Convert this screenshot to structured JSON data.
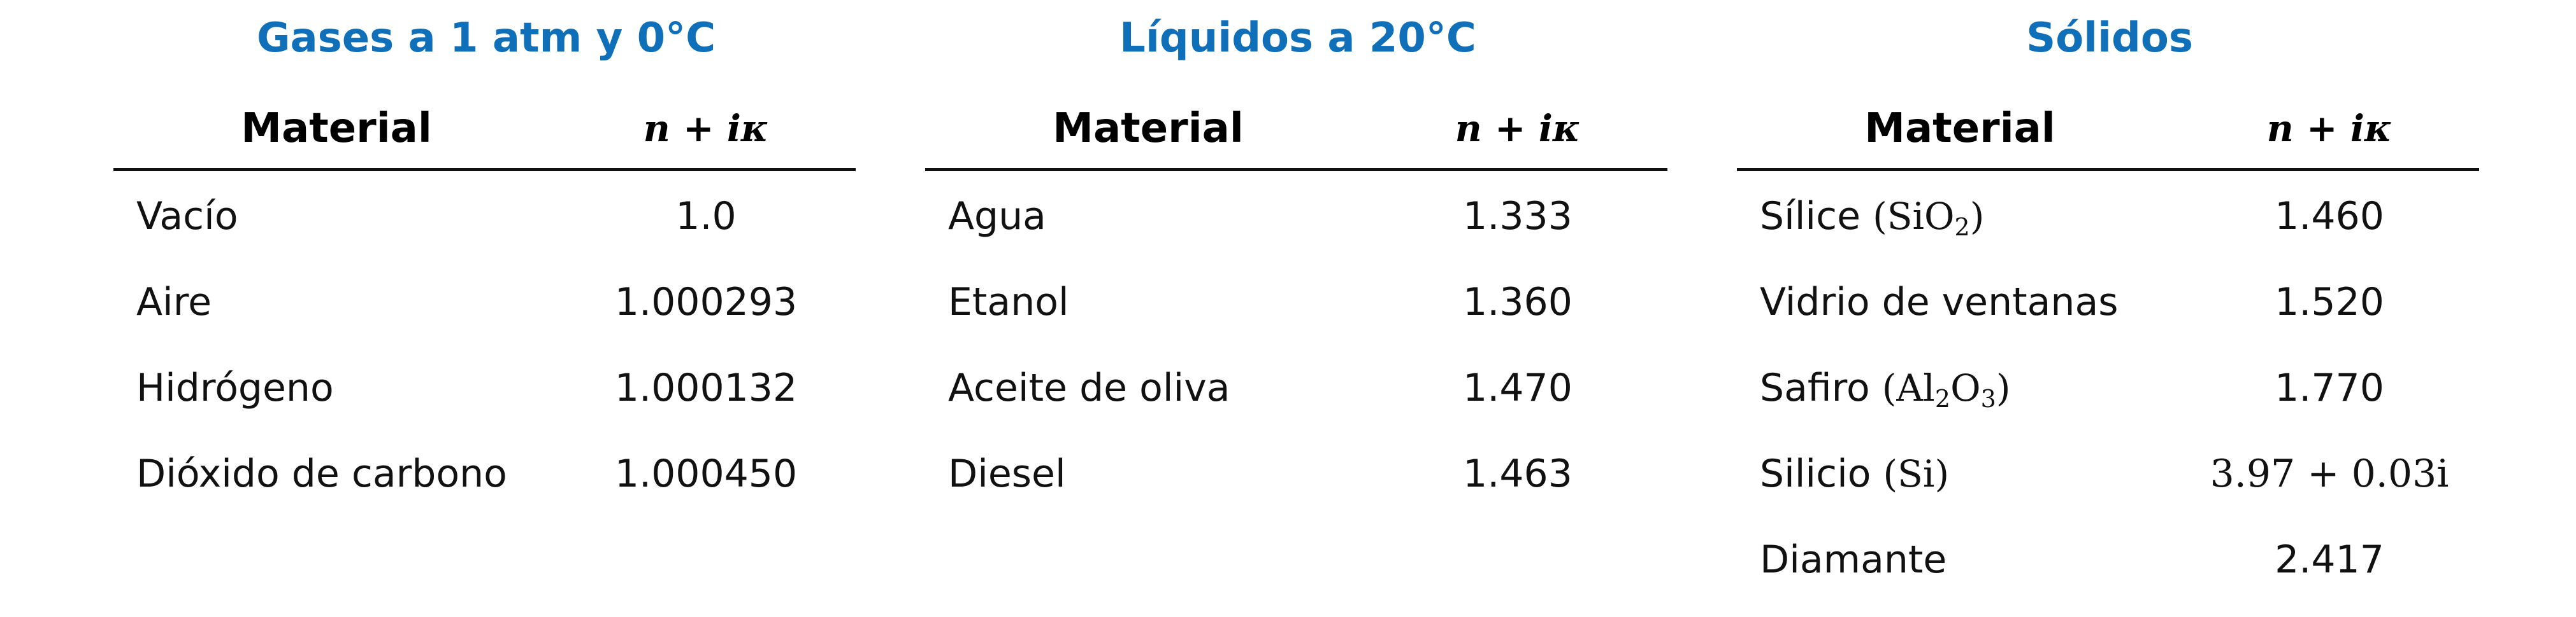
{
  "tables": [
    {
      "title": "Gases a 1 atm y 0°C",
      "headers": {
        "material": "Material",
        "index": "n + iκ"
      },
      "rows": [
        {
          "material": "Vacío",
          "formula": "",
          "value": "1.0"
        },
        {
          "material": "Aire",
          "formula": "",
          "value": "1.000293"
        },
        {
          "material": "Hidrógeno",
          "formula": "",
          "value": "1.000132"
        },
        {
          "material": "Dióxido de carbono",
          "formula": "",
          "value": "1.000450"
        }
      ]
    },
    {
      "title": "Líquidos a 20°C",
      "headers": {
        "material": "Material",
        "index": "n + iκ"
      },
      "rows": [
        {
          "material": "Agua",
          "formula": "",
          "value": "1.333"
        },
        {
          "material": "Etanol",
          "formula": "",
          "value": "1.360"
        },
        {
          "material": "Aceite de oliva",
          "formula": "",
          "value": "1.470"
        },
        {
          "material": "Diesel",
          "formula": "",
          "value": "1.463"
        }
      ]
    },
    {
      "title": "Sólidos",
      "headers": {
        "material": "Material",
        "index": "n + iκ"
      },
      "rows": [
        {
          "material": "Sílice",
          "formula": "(SiO2)",
          "value": "1.460"
        },
        {
          "material": "Vidrio de ventanas",
          "formula": "",
          "value": "1.520"
        },
        {
          "material": "Safiro",
          "formula": "(Al2O3)",
          "value": "1.770"
        },
        {
          "material": "Silicio",
          "formula": "(Si)",
          "value": "3.97 + 0.03i"
        },
        {
          "material": "Diamante",
          "formula": "",
          "value": "2.417"
        }
      ]
    }
  ],
  "colors": {
    "title": "#0f6fb8",
    "text": "#111111",
    "rule": "#111111"
  }
}
